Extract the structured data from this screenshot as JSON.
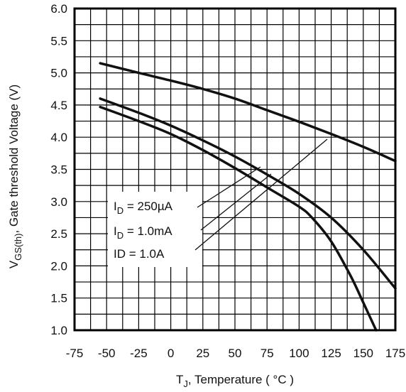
{
  "chart_data": {
    "type": "line",
    "title": "",
    "xlabel": {
      "main": "T",
      "sub": "J",
      "rest": ", Temperature ( °C )"
    },
    "ylabel": {
      "main": "V",
      "sub": "GS(th)",
      "rest": ", Gate threshold Voltage (V)"
    },
    "xlim": [
      -75,
      175
    ],
    "ylim": [
      1.0,
      6.0
    ],
    "x_ticks": [
      "-75",
      "-50",
      "-25",
      "0",
      "25",
      "50",
      "75",
      "100",
      "125",
      "150",
      "175"
    ],
    "y_ticks": [
      "1.0",
      "1.5",
      "2.0",
      "2.5",
      "3.0",
      "3.5",
      "4.0",
      "4.5",
      "5.0",
      "5.5",
      "6.0"
    ],
    "grid": true,
    "series": [
      {
        "name": "ID = 1.0A",
        "x": [
          -55,
          -25,
          0,
          25,
          50,
          75,
          100,
          125,
          150,
          175
        ],
        "y": [
          5.15,
          5.0,
          4.88,
          4.75,
          4.6,
          4.42,
          4.24,
          4.05,
          3.85,
          3.63
        ]
      },
      {
        "name": "ID = 1.0mA",
        "x": [
          -55,
          -25,
          0,
          25,
          50,
          75,
          100,
          125,
          150,
          175
        ],
        "y": [
          4.6,
          4.38,
          4.18,
          3.95,
          3.7,
          3.42,
          3.12,
          2.75,
          2.25,
          1.65
        ]
      },
      {
        "name": "ID = 250µA",
        "x": [
          -55,
          -25,
          0,
          25,
          50,
          75,
          100,
          110,
          125,
          140,
          150,
          160
        ],
        "y": [
          4.47,
          4.25,
          4.05,
          3.8,
          3.52,
          3.22,
          2.92,
          2.75,
          2.38,
          1.85,
          1.43,
          1.0
        ]
      }
    ],
    "legend": [
      {
        "main": "I",
        "sub": "D",
        "rest": " = 250µA"
      },
      {
        "main": "I",
        "sub": "D",
        "rest": " = 1.0mA"
      },
      {
        "main": "ID = 1.0A",
        "sub": "",
        "rest": ""
      }
    ],
    "legend_placement": "lower-left, inside plot"
  }
}
